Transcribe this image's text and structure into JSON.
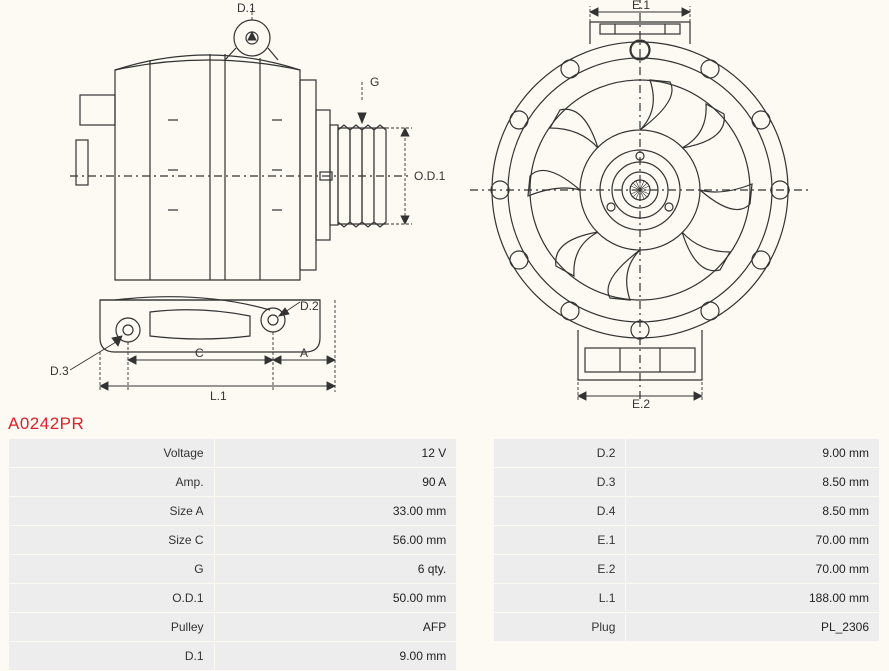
{
  "part_number": "A0242PR",
  "part_number_color": "#d8232a",
  "diagram": {
    "stroke": "#333333",
    "stroke_width": 1.2,
    "dash": "3,3",
    "labels": {
      "D1": "D.1",
      "D2": "D.2",
      "D3": "D.3",
      "G": "G",
      "OD1": "O.D.1",
      "C": "C",
      "A": "A",
      "L1": "L.1",
      "E1": "E.1",
      "E2": "E.2"
    }
  },
  "specs_left": [
    {
      "label": "Voltage",
      "value": "12 V"
    },
    {
      "label": "Amp.",
      "value": "90 A"
    },
    {
      "label": "Size A",
      "value": "33.00 mm"
    },
    {
      "label": "Size C",
      "value": "56.00 mm"
    },
    {
      "label": "G",
      "value": "6 qty."
    },
    {
      "label": "O.D.1",
      "value": "50.00 mm"
    },
    {
      "label": "Pulley",
      "value": "AFP"
    },
    {
      "label": "D.1",
      "value": "9.00 mm"
    }
  ],
  "specs_right": [
    {
      "label": "D.2",
      "value": "9.00 mm"
    },
    {
      "label": "D.3",
      "value": "8.50 mm"
    },
    {
      "label": "D.4",
      "value": "8.50 mm"
    },
    {
      "label": "E.1",
      "value": "70.00 mm"
    },
    {
      "label": "E.2",
      "value": "70.00 mm"
    },
    {
      "label": "L.1",
      "value": "188.00 mm"
    },
    {
      "label": "Plug",
      "value": "PL_2306"
    }
  ],
  "layout": {
    "col_label_w": 207,
    "col_value_w": 250,
    "gap_w": 22,
    "row_bg": "#ededed",
    "page_bg": "#fdfaf3"
  }
}
